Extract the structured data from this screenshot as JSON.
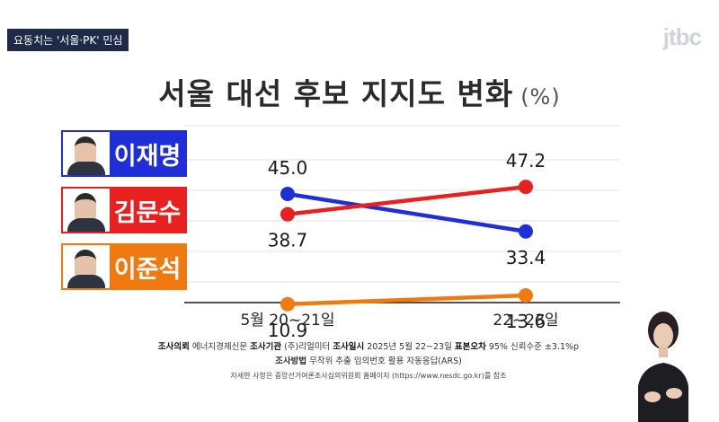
{
  "header": {
    "tag": "요동치는 '서울·PK' 민심",
    "logo": "jtbc"
  },
  "chart_data": {
    "type": "line",
    "title": "서울 대선 후보 지지도 변화",
    "unit": "(%)",
    "categories": [
      "5월 20~21일",
      "22~23일"
    ],
    "ylim": [
      0,
      55
    ],
    "grid": true,
    "series": [
      {
        "name": "이재명",
        "color": "#1f2ed6",
        "values": [
          45.0,
          33.4
        ]
      },
      {
        "name": "김문수",
        "color": "#e8201f",
        "values": [
          38.7,
          47.2
        ]
      },
      {
        "name": "이준석",
        "color": "#f07a10",
        "values": [
          10.9,
          13.6
        ]
      }
    ]
  },
  "survey": {
    "line1": [
      {
        "label": "조사의뢰",
        "value": "에너지경제신문"
      },
      {
        "label": "조사기관",
        "value": "(주)리얼미터"
      },
      {
        "label": "조사일시",
        "value": "2025년 5월 22~23일"
      },
      {
        "label": "표본오차",
        "value": "95% 신뢰수준 ±3.1%p"
      }
    ],
    "line2": {
      "label": "조사방법",
      "value": "무작위 추출 임의번호 활용 자동응답(ARS)"
    },
    "footnote": "자세한 사항은 중앙선거여론조사심의위원회 홈페이지 (https://www.nesdc.go.kr)를 참조"
  }
}
